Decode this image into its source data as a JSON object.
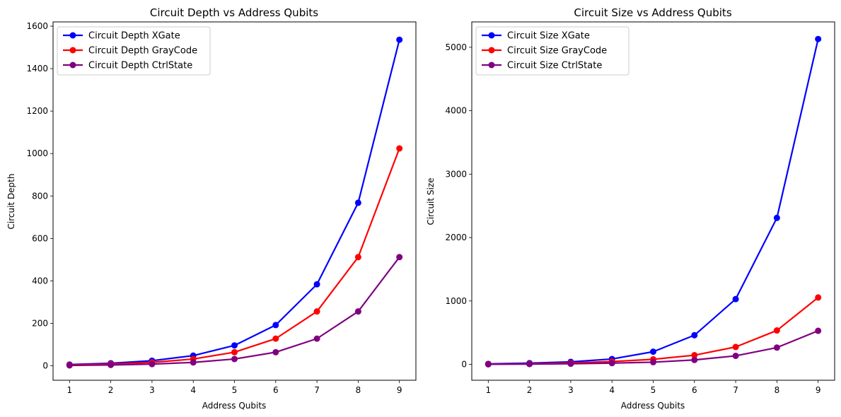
{
  "chart_data": [
    {
      "type": "line",
      "title": "Circuit Depth vs Address Qubits",
      "xlabel": "Address Qubits",
      "ylabel": "Circuit Depth",
      "x": [
        1,
        2,
        3,
        4,
        5,
        6,
        7,
        8,
        9
      ],
      "xlim": [
        0.6,
        9.4
      ],
      "ylim": [
        -68,
        1620
      ],
      "yticks": [
        0,
        200,
        400,
        600,
        800,
        1000,
        1200,
        1400,
        1600
      ],
      "legend": "top-left",
      "grid": false,
      "series": [
        {
          "name": "Circuit Depth XGate",
          "color": "#0000ff",
          "values": [
            6,
            12,
            24,
            48,
            96,
            192,
            384,
            768,
            1536
          ]
        },
        {
          "name": "Circuit Depth GrayCode",
          "color": "#ff0000",
          "values": [
            4,
            8,
            16,
            32,
            64,
            128,
            256,
            512,
            1024
          ]
        },
        {
          "name": "Circuit Depth CtrlState",
          "color": "#800080",
          "values": [
            2,
            4,
            8,
            16,
            32,
            64,
            128,
            256,
            512
          ]
        }
      ]
    },
    {
      "type": "line",
      "title": "Circuit Size vs Address Qubits",
      "xlabel": "Address Qubits",
      "ylabel": "Circuit Size",
      "x": [
        1,
        2,
        3,
        4,
        5,
        6,
        7,
        8,
        9
      ],
      "xlim": [
        0.6,
        9.4
      ],
      "ylim": [
        -250,
        5400
      ],
      "yticks": [
        0,
        1000,
        2000,
        3000,
        4000,
        5000
      ],
      "legend": "top-left",
      "grid": false,
      "series": [
        {
          "name": "Circuit Size XGate",
          "color": "#0000ff",
          "values": [
            8,
            20,
            40,
            85,
            200,
            460,
            1030,
            2310,
            5130
          ]
        },
        {
          "name": "Circuit Size GrayCode",
          "color": "#ff0000",
          "values": [
            4,
            10,
            22,
            45,
            80,
            145,
            275,
            535,
            1055
          ]
        },
        {
          "name": "Circuit Size CtrlState",
          "color": "#800080",
          "values": [
            2,
            5,
            10,
            20,
            35,
            70,
            135,
            265,
            530
          ]
        }
      ]
    }
  ]
}
